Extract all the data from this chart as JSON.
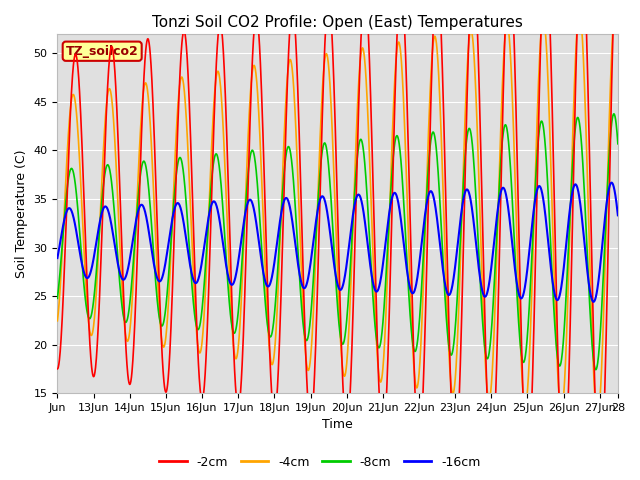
{
  "title": "Tonzi Soil CO2 Profile: Open (East) Temperatures",
  "xlabel": "Time",
  "ylabel": "Soil Temperature (C)",
  "ylim": [
    15,
    52
  ],
  "xlim_start": 0,
  "xlim_end": 15.5,
  "xtick_labels": [
    "Jun",
    "13Jun",
    "14Jun",
    "15Jun",
    "16Jun",
    "17Jun",
    "18Jun",
    "19Jun",
    "20Jun",
    "21Jun",
    "22Jun",
    "23Jun",
    "24Jun",
    "25Jun",
    "26Jun",
    "27Jun",
    "28"
  ],
  "xtick_positions": [
    0,
    1,
    2,
    3,
    4,
    5,
    6,
    7,
    8,
    9,
    10,
    11,
    12,
    13,
    14,
    15,
    15.5
  ],
  "ytick_positions": [
    15,
    20,
    25,
    30,
    35,
    40,
    45,
    50
  ],
  "colors": {
    "-2cm": "#ff0000",
    "-4cm": "#ffa500",
    "-8cm": "#00cc00",
    "-16cm": "#0000ff"
  },
  "legend_label": "TZ_soilco2",
  "legend_bbox_facecolor": "#ffff99",
  "legend_bbox_edgecolor": "#cc0000",
  "legend_text_color": "#990000",
  "figure_facecolor": "#ffffff",
  "plot_facecolor": "#e0e0e0",
  "n_points": 2000,
  "omega": 6.2832,
  "mean_2cm": 33.5,
  "mean_4cm": 33.5,
  "mean_8cm": 30.5,
  "mean_16cm": 30.5,
  "amp_2cm_base": 16.0,
  "amp_4cm_base": 12.0,
  "amp_8cm_base": 7.5,
  "amp_16cm_base": 3.5,
  "amp_growth_rate": 0.05,
  "phase_2cm": -1.5708,
  "phase_4cm": -1.1708,
  "phase_8cm": -0.8708,
  "phase_16cm": -0.4708,
  "title_fontsize": 11,
  "axis_label_fontsize": 9,
  "tick_fontsize": 8,
  "legend_fontsize": 9,
  "linewidth_thin": 1.2,
  "linewidth_thick": 1.5
}
